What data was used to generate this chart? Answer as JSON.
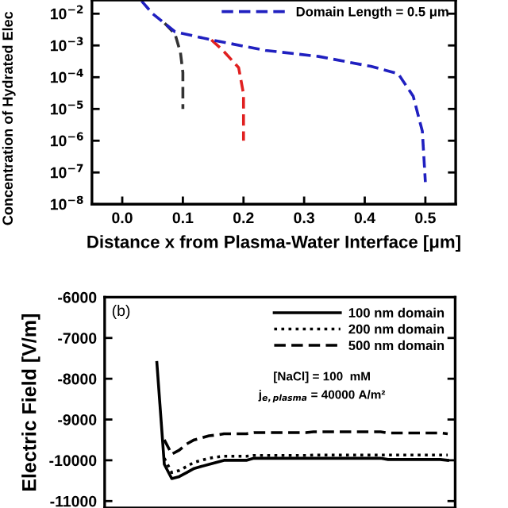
{
  "chart_data": [
    {
      "type": "line",
      "ylabel": "Concentration of Hydrated Elec",
      "xlabel": "Distance x from Plasma-Water Interface [μm]",
      "log": "y",
      "xlim": [
        -0.05,
        0.55
      ],
      "xticks": [
        {
          "value": 0,
          "label": "0.0"
        },
        0.1,
        0.2,
        0.3,
        0.4,
        0.5
      ],
      "ylim": [
        1e-08,
        0.027
      ],
      "yticks": [
        {
          "value": 1e-08,
          "label": "10$^{−8}$"
        },
        {
          "value": 1e-07,
          "label": "10$^{−7}$"
        },
        {
          "value": 1e-06,
          "label": "10$^{−6}$"
        },
        {
          "value": 1e-05,
          "label": "10$^{−5}$"
        },
        {
          "value": 0.0001,
          "label": "10$^{−4}$"
        },
        {
          "value": 0.001,
          "label": "10$^{−3}$"
        },
        {
          "value": 0.01,
          "label": "10$^{−2}$"
        }
      ],
      "legend": "top right",
      "grid": false,
      "series": [
        {
          "color": "#333333",
          "line_style": "dashed",
          "x": [
            0.07,
            0.087,
            0.096,
            0.1,
            0.1
          ],
          "values": [
            0.005,
            0.0023,
            0.0006,
            0.00014,
            1e-05
          ]
        },
        {
          "color": "#e02020",
          "line_style": "dashed",
          "x": [
            0.147,
            0.166,
            0.192,
            0.2,
            0.2
          ],
          "values": [
            0.0015,
            0.0007,
            0.0002,
            3e-05,
            1e-06
          ]
        },
        {
          "name": "Domain Length = 0.5 μm",
          "color": "#2020c0",
          "line_style": "dashed",
          "x": [
            0.032,
            0.05,
            0.087,
            0.147,
            0.236,
            0.324,
            0.41,
            0.455,
            0.48,
            0.495,
            0.5
          ],
          "values": [
            0.025,
            0.01,
            0.0027,
            0.0015,
            0.0007,
            0.00045,
            0.00022,
            0.00013,
            2.5e-05,
            2e-06,
            5e-08
          ]
        }
      ]
    },
    {
      "type": "line",
      "ylabel": "Electric Field [V/m]",
      "ylim": [
        -11170,
        -6000
      ],
      "yticks": [
        -11000,
        -10000,
        -9000,
        -8000,
        -7000,
        -6000
      ],
      "legend": "top right",
      "grid": false,
      "tick_labels": "y",
      "annotations": [
        "(b)",
        "[NaCl] = 100  mM",
        "j$_{e,plasma}$ = 40000 A/m²"
      ],
      "categories": [
        null,
        null,
        null,
        null,
        null,
        null,
        null,
        null,
        null,
        null,
        null,
        null,
        null,
        null,
        null,
        null,
        null,
        null,
        null,
        null,
        null,
        null,
        null,
        null,
        null,
        null,
        null,
        null,
        null,
        null,
        null,
        null,
        null,
        null,
        null,
        null,
        null,
        null,
        null,
        null
      ],
      "series": [
        {
          "name": "100 nm domain",
          "color": "#000000",
          "line_style": "solid",
          "values": [
            -7600,
            -10100,
            -10450,
            -10400,
            -10300,
            -10200,
            -10150,
            -10100,
            -10050,
            -10000,
            -10000,
            -10000,
            -10000,
            -9950,
            -9950,
            -9950,
            -9950,
            -9950,
            -9950,
            -9950,
            -9950,
            -9950,
            -9950,
            -9950,
            -9950,
            -9950,
            -9950,
            -9950,
            -9950,
            -9950,
            -9950,
            -9980,
            -9980,
            -9980,
            -9980,
            -9980,
            -9980,
            -9980,
            -9980,
            -10000
          ]
        },
        {
          "name": "200 nm domain",
          "color": "#000000",
          "line_style": "dotted",
          "values": [
            null,
            -9950,
            -10300,
            -10250,
            -10150,
            -10050,
            -10000,
            -9950,
            -9920,
            -9900,
            -9900,
            -9900,
            -9900,
            -9880,
            -9880,
            -9880,
            -9880,
            -9880,
            -9880,
            -9880,
            -9880,
            -9870,
            -9870,
            -9870,
            -9870,
            -9870,
            -9870,
            -9870,
            -9870,
            -9870,
            -9870,
            -9870,
            -9870,
            -9870,
            -9870,
            -9870,
            -9870,
            -9870,
            -9870,
            -9870
          ]
        },
        {
          "name": "500 nm domain",
          "color": "#000000",
          "line_style": "dashed",
          "values": [
            null,
            -9500,
            -9850,
            -9750,
            -9600,
            -9500,
            -9450,
            -9400,
            -9380,
            -9350,
            -9350,
            -9350,
            -9350,
            -9320,
            -9320,
            -9320,
            -9320,
            -9320,
            -9320,
            -9320,
            -9320,
            -9300,
            -9300,
            -9300,
            -9300,
            -9300,
            -9300,
            -9300,
            -9300,
            -9300,
            -9300,
            -9330,
            -9330,
            -9330,
            -9330,
            -9330,
            -9330,
            -9330,
            -9330,
            -9350
          ]
        }
      ]
    }
  ]
}
